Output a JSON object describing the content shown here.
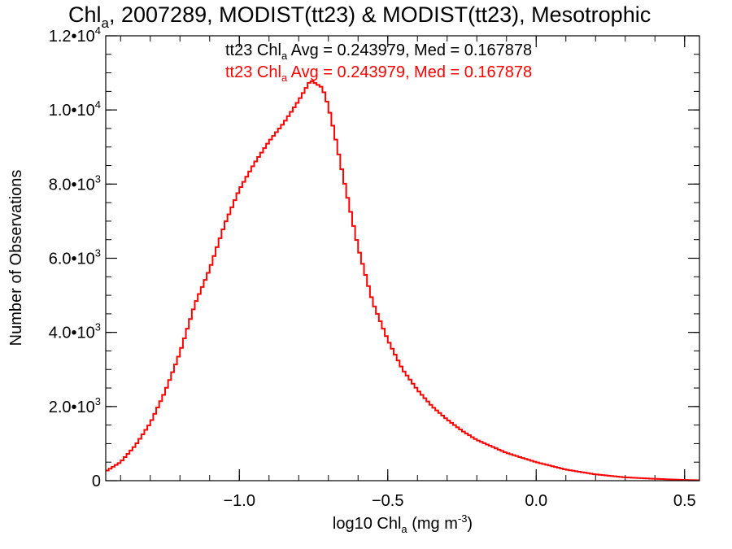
{
  "chart_data": {
    "type": "histogram",
    "title": {
      "prefix": "Chl",
      "prefix_sub": "a",
      "rest": ", 2007289, MODIST(tt23) & MODIST(tt23), Mesotrophic"
    },
    "xlabel": {
      "prefix": "log10 Chl",
      "sub": "a",
      "mid": " (mg m",
      "sup": "-3",
      "suffix": ")"
    },
    "ylabel": "Number of Observations",
    "xlim": [
      -1.45,
      0.55
    ],
    "ylim": [
      0,
      12000
    ],
    "x_ticks": [
      {
        "value": -1.0,
        "label": "−1.0"
      },
      {
        "value": -0.5,
        "label": "−0.5"
      },
      {
        "value": 0.0,
        "label": "0.0"
      },
      {
        "value": 0.5,
        "label": "0.5"
      }
    ],
    "x_minor_step": 0.1,
    "y_ticks": [
      {
        "value": 0,
        "mant": "0",
        "exp": ""
      },
      {
        "value": 2000,
        "mant": "2.0•10",
        "exp": "3"
      },
      {
        "value": 4000,
        "mant": "4.0•10",
        "exp": "3"
      },
      {
        "value": 6000,
        "mant": "6.0•10",
        "exp": "3"
      },
      {
        "value": 8000,
        "mant": "8.0•10",
        "exp": "3"
      },
      {
        "value": 10000,
        "mant": "1.0•10",
        "exp": "4"
      },
      {
        "value": 12000,
        "mant": "1.2•10",
        "exp": "4"
      }
    ],
    "y_minor_step": 500,
    "legend": [
      {
        "pre": "tt23 Chl",
        "sub": "a",
        "post": " Avg = 0.243979, Med = 0.167878",
        "color": "#000000"
      },
      {
        "pre": "tt23 Chl",
        "sub": "a",
        "post": " Avg = 0.243979, Med = 0.167878",
        "color": "#ff0000"
      }
    ],
    "series": [
      {
        "color": "#ff0000",
        "x": [
          -1.45,
          -1.4,
          -1.35,
          -1.3,
          -1.25,
          -1.2,
          -1.15,
          -1.1,
          -1.05,
          -1.0,
          -0.95,
          -0.9,
          -0.85,
          -0.8,
          -0.76,
          -0.74,
          -0.72,
          -0.7,
          -0.68,
          -0.65,
          -0.6,
          -0.55,
          -0.5,
          -0.45,
          -0.4,
          -0.35,
          -0.3,
          -0.25,
          -0.2,
          -0.1,
          0.0,
          0.1,
          0.2,
          0.3,
          0.4,
          0.5,
          0.55
        ],
        "values": [
          250,
          500,
          950,
          1550,
          2400,
          3450,
          4750,
          5700,
          6900,
          7850,
          8550,
          9150,
          9650,
          10250,
          10800,
          10700,
          10600,
          10100,
          9400,
          8200,
          6300,
          4800,
          3800,
          3000,
          2450,
          2000,
          1650,
          1350,
          1100,
          750,
          500,
          300,
          170,
          90,
          50,
          20,
          10
        ]
      }
    ]
  }
}
